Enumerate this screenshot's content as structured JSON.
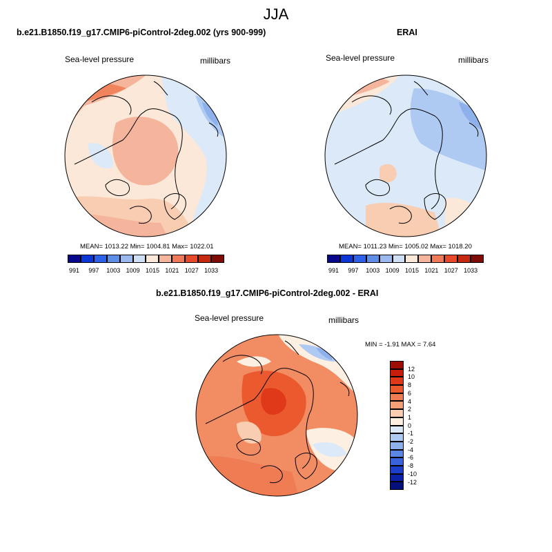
{
  "season": "JJA",
  "panels": [
    {
      "title": "b.e21.B1850.f19_g17.CMIP6-piControl-2deg.002 (yrs 900-999)",
      "variable": "Sea-level pressure",
      "units": "millibars",
      "stats": "MEAN= 1013.22  Min= 1004.81  Max= 1022.01"
    },
    {
      "title": "ERAI",
      "variable": "Sea-level pressure",
      "units": "millibars",
      "stats": "MEAN= 1011.23  Min= 1005.02  Max= 1018.20"
    },
    {
      "title": "b.e21.B1850.f19_g17.CMIP6-piControl-2deg.002 - ERAI",
      "variable": "Sea-level pressure",
      "units": "millibars",
      "stats": "MIN =  -1.91 MAX =   7.64"
    }
  ],
  "colorbar_abs": {
    "labels": [
      "991",
      "997",
      "1003",
      "1009",
      "1015",
      "1021",
      "1027",
      "1033"
    ],
    "colors": [
      "#08088c",
      "#0d36d6",
      "#2d62e8",
      "#5f8ee6",
      "#9bb9ee",
      "#cfe0f6",
      "#fbe8d8",
      "#f5b49c",
      "#f07a58",
      "#e74a2a",
      "#c72910",
      "#7e0b06"
    ]
  },
  "colorbar_diff": {
    "labels": [
      "12",
      "10",
      "8",
      "6",
      "4",
      "2",
      "1",
      "0",
      "-1",
      "-2",
      "-4",
      "-6",
      "-8",
      "-10",
      "-12"
    ],
    "colors": [
      "#9c0d06",
      "#c71d0c",
      "#e0391a",
      "#ea5a2e",
      "#ef7c52",
      "#f5a078",
      "#f9cdb1",
      "#fdf0e2",
      "#dbe9f8",
      "#aecaf2",
      "#8eb1ec",
      "#5c86e4",
      "#3a62dc",
      "#1d3ecb",
      "#0b21a8",
      "#05107a"
    ]
  }
}
